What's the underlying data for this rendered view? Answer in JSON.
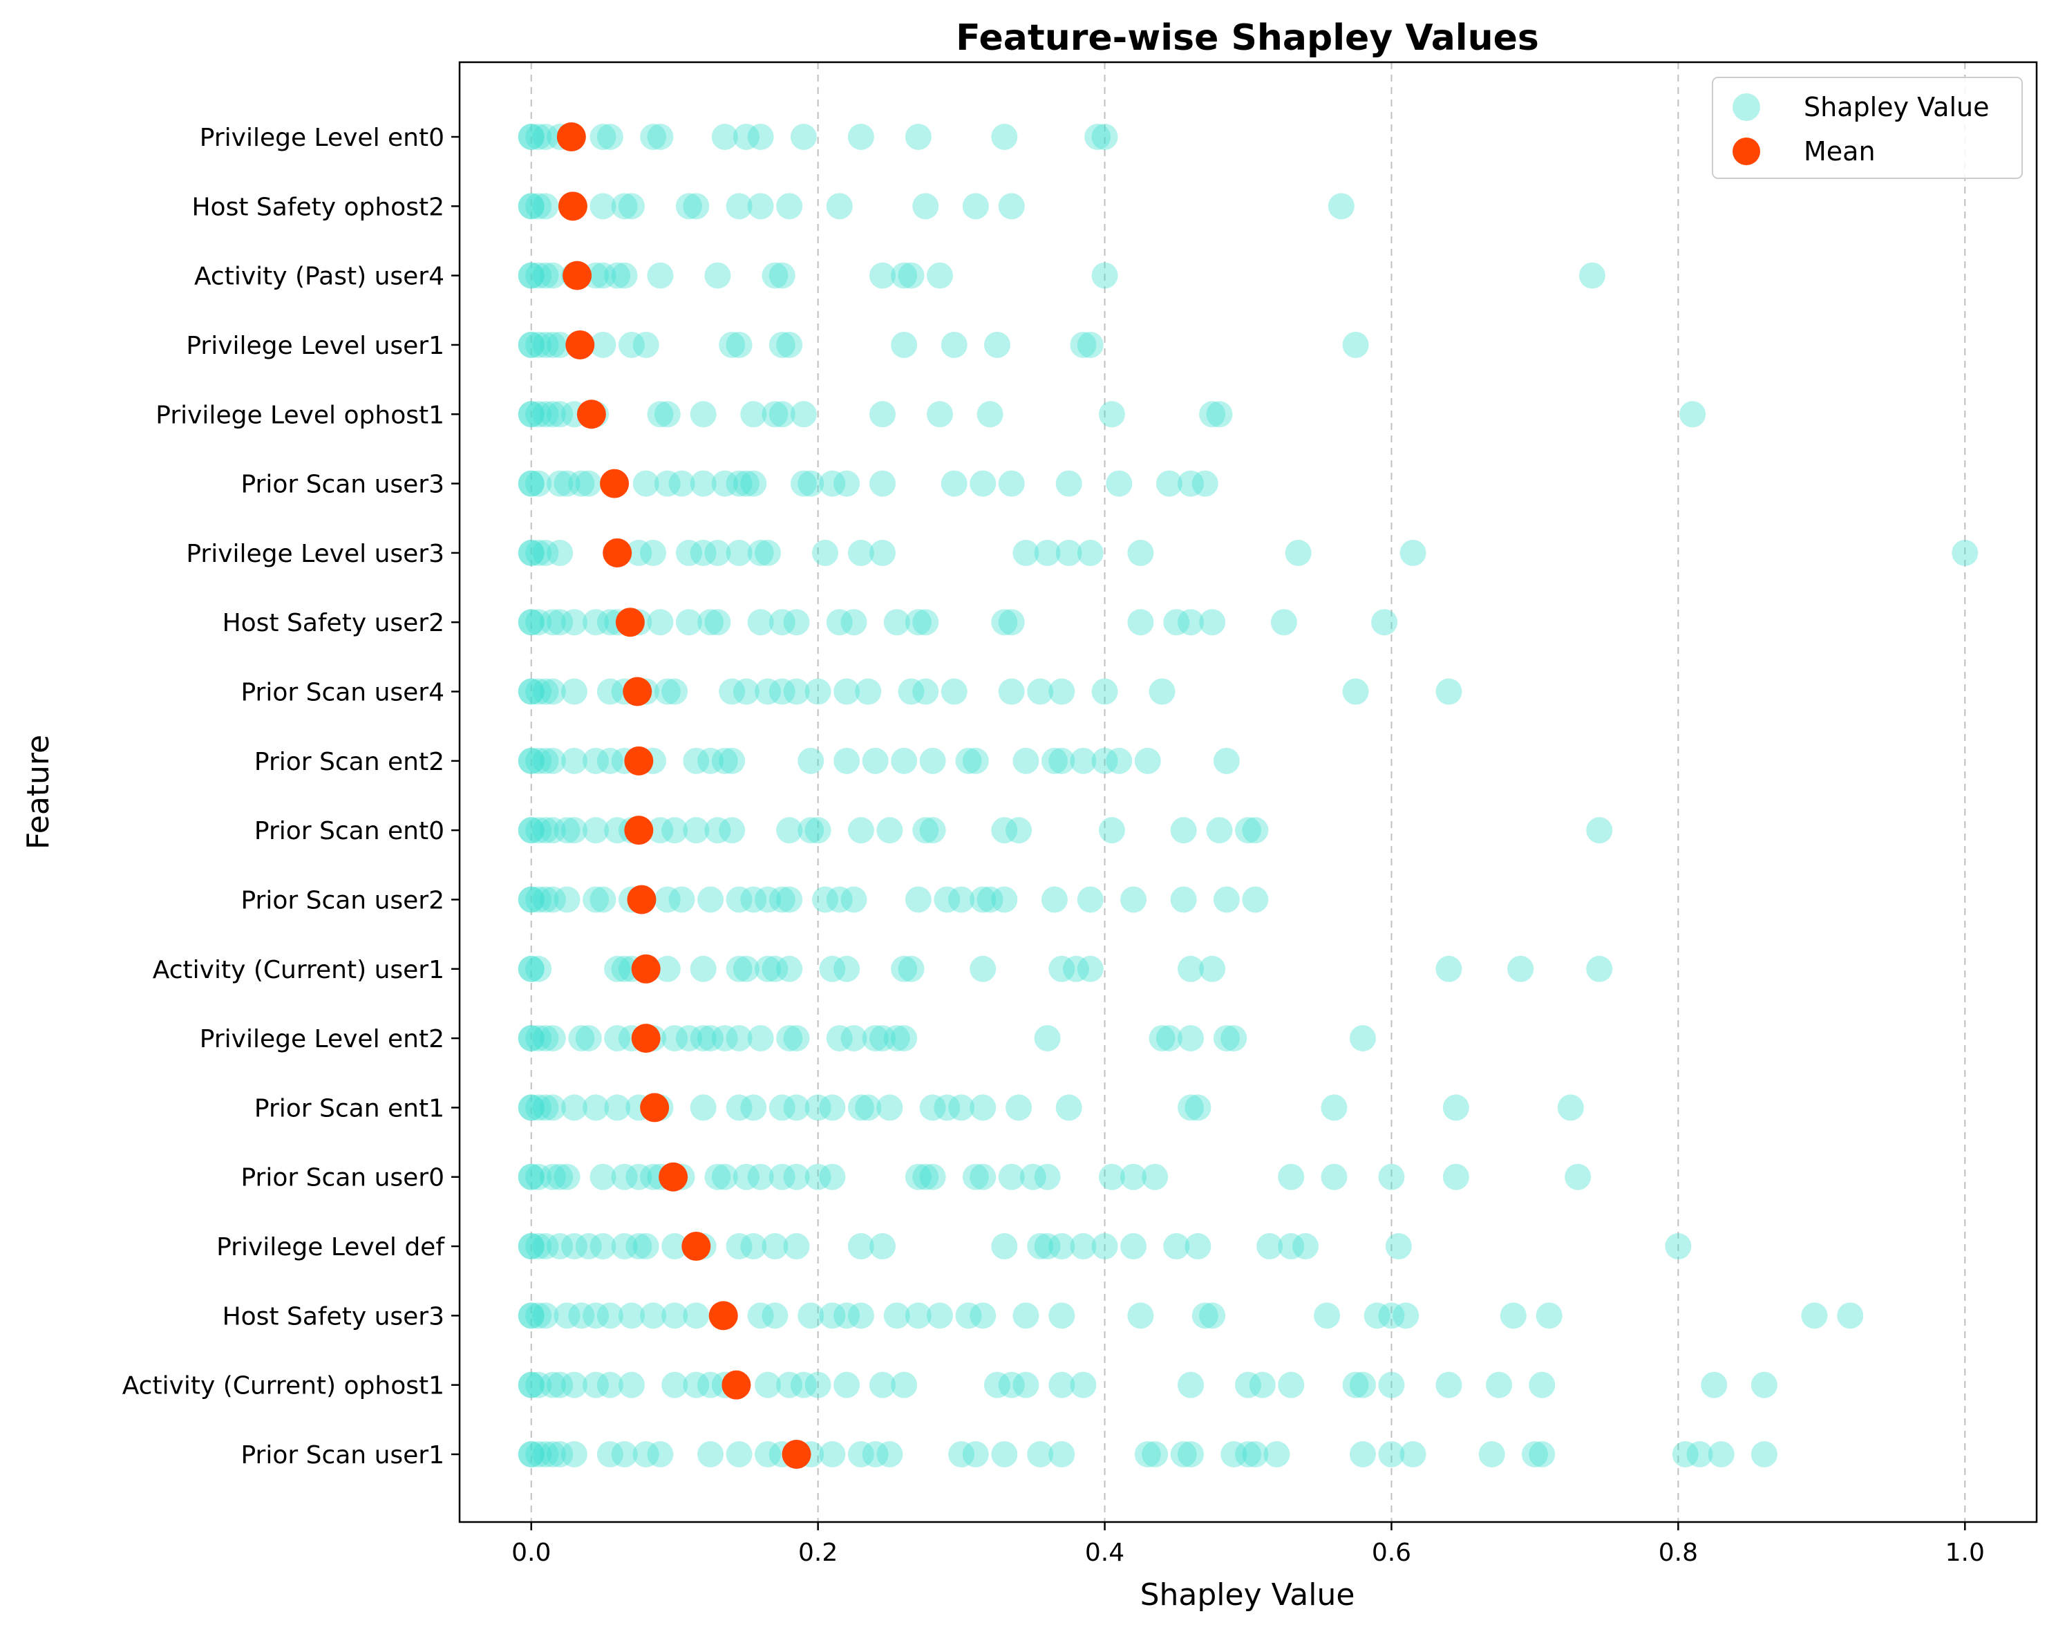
{
  "chart_data": {
    "type": "scatter",
    "title": "Feature-wise Shapley Values",
    "xlabel": "Shapley Value",
    "ylabel": "Feature",
    "xlim": [
      -0.05,
      1.05
    ],
    "xticks": [
      "0.0",
      "0.2",
      "0.4",
      "0.6",
      "0.8",
      "1.0"
    ],
    "xtick_values": [
      0.0,
      0.2,
      0.4,
      0.6,
      0.8,
      1.0
    ],
    "grid": "x-dashed",
    "legend_position": "top-right",
    "colors": {
      "points": "#40E0D0",
      "mean": "#FF4500"
    },
    "legend": [
      {
        "label": "Shapley Value",
        "kind": "points"
      },
      {
        "label": "Mean",
        "kind": "mean"
      }
    ],
    "features": [
      {
        "name": "Privilege Level ent0",
        "mean": 0.028,
        "values": [
          0,
          0,
          0.005,
          0.01,
          0.02,
          0.05,
          0.055,
          0.085,
          0.09,
          0.135,
          0.15,
          0.16,
          0.19,
          0.23,
          0.27,
          0.33,
          0.395,
          0.4
        ]
      },
      {
        "name": "Host Safety ophost2",
        "mean": 0.029,
        "values": [
          0,
          0,
          0.005,
          0.01,
          0.03,
          0.05,
          0.065,
          0.07,
          0.11,
          0.115,
          0.145,
          0.16,
          0.18,
          0.215,
          0.275,
          0.31,
          0.335,
          0.565
        ]
      },
      {
        "name": "Activity (Past) user4",
        "mean": 0.032,
        "values": [
          0,
          0,
          0.005,
          0.01,
          0.015,
          0.03,
          0.045,
          0.05,
          0.06,
          0.065,
          0.09,
          0.13,
          0.17,
          0.175,
          0.245,
          0.26,
          0.265,
          0.285,
          0.4,
          0.74
        ]
      },
      {
        "name": "Privilege Level user1",
        "mean": 0.034,
        "values": [
          0,
          0,
          0.005,
          0.01,
          0.015,
          0.02,
          0.05,
          0.07,
          0.08,
          0.14,
          0.145,
          0.175,
          0.18,
          0.26,
          0.295,
          0.325,
          0.385,
          0.39,
          0.575
        ]
      },
      {
        "name": "Privilege Level ophost1",
        "mean": 0.042,
        "values": [
          0,
          0,
          0.005,
          0.01,
          0.015,
          0.02,
          0.03,
          0.045,
          0.09,
          0.095,
          0.12,
          0.155,
          0.17,
          0.175,
          0.19,
          0.245,
          0.285,
          0.32,
          0.405,
          0.475,
          0.48,
          0.81
        ]
      },
      {
        "name": "Prior Scan user3",
        "mean": 0.058,
        "values": [
          0,
          0,
          0.005,
          0.02,
          0.025,
          0.035,
          0.04,
          0.08,
          0.095,
          0.105,
          0.12,
          0.135,
          0.145,
          0.15,
          0.155,
          0.19,
          0.195,
          0.21,
          0.22,
          0.245,
          0.295,
          0.315,
          0.335,
          0.375,
          0.41,
          0.445,
          0.46,
          0.47
        ]
      },
      {
        "name": "Privilege Level user3",
        "mean": 0.06,
        "values": [
          0,
          0,
          0.005,
          0.01,
          0.02,
          0.075,
          0.085,
          0.11,
          0.12,
          0.13,
          0.145,
          0.16,
          0.165,
          0.205,
          0.23,
          0.245,
          0.345,
          0.36,
          0.375,
          0.39,
          0.425,
          0.535,
          0.615,
          1.0
        ]
      },
      {
        "name": "Host Safety user2",
        "mean": 0.069,
        "values": [
          0,
          0,
          0.005,
          0.015,
          0.02,
          0.03,
          0.045,
          0.055,
          0.06,
          0.075,
          0.09,
          0.11,
          0.125,
          0.13,
          0.16,
          0.175,
          0.185,
          0.215,
          0.225,
          0.255,
          0.27,
          0.275,
          0.33,
          0.335,
          0.425,
          0.45,
          0.46,
          0.475,
          0.525,
          0.595
        ]
      },
      {
        "name": "Prior Scan user4",
        "mean": 0.074,
        "values": [
          0,
          0,
          0.005,
          0.01,
          0.015,
          0.03,
          0.055,
          0.065,
          0.08,
          0.095,
          0.1,
          0.14,
          0.15,
          0.165,
          0.175,
          0.185,
          0.2,
          0.22,
          0.235,
          0.265,
          0.275,
          0.295,
          0.335,
          0.355,
          0.37,
          0.4,
          0.44,
          0.575,
          0.64
        ]
      },
      {
        "name": "Prior Scan ent2",
        "mean": 0.075,
        "values": [
          0,
          0,
          0.005,
          0.01,
          0.015,
          0.03,
          0.045,
          0.055,
          0.065,
          0.085,
          0.115,
          0.125,
          0.135,
          0.14,
          0.195,
          0.22,
          0.24,
          0.26,
          0.28,
          0.305,
          0.31,
          0.345,
          0.365,
          0.37,
          0.385,
          0.4,
          0.41,
          0.43,
          0.485
        ]
      },
      {
        "name": "Prior Scan ent0",
        "mean": 0.075,
        "values": [
          0,
          0,
          0.005,
          0.01,
          0.015,
          0.025,
          0.03,
          0.045,
          0.06,
          0.07,
          0.09,
          0.1,
          0.115,
          0.13,
          0.14,
          0.18,
          0.195,
          0.2,
          0.23,
          0.25,
          0.275,
          0.28,
          0.33,
          0.34,
          0.405,
          0.455,
          0.48,
          0.5,
          0.505,
          0.745
        ]
      },
      {
        "name": "Prior Scan user2",
        "mean": 0.077,
        "values": [
          0,
          0,
          0.005,
          0.01,
          0.015,
          0.025,
          0.045,
          0.05,
          0.07,
          0.095,
          0.105,
          0.125,
          0.145,
          0.155,
          0.165,
          0.175,
          0.18,
          0.205,
          0.215,
          0.225,
          0.27,
          0.29,
          0.3,
          0.315,
          0.32,
          0.33,
          0.365,
          0.39,
          0.42,
          0.455,
          0.485,
          0.505
        ]
      },
      {
        "name": "Activity (Current) user1",
        "mean": 0.08,
        "values": [
          0,
          0,
          0.005,
          0.06,
          0.065,
          0.07,
          0.095,
          0.12,
          0.145,
          0.15,
          0.165,
          0.17,
          0.18,
          0.21,
          0.22,
          0.26,
          0.265,
          0.315,
          0.37,
          0.38,
          0.39,
          0.46,
          0.475,
          0.64,
          0.69,
          0.745
        ]
      },
      {
        "name": "Privilege Level ent2",
        "mean": 0.08,
        "values": [
          0,
          0,
          0.005,
          0.01,
          0.015,
          0.035,
          0.04,
          0.06,
          0.07,
          0.085,
          0.1,
          0.11,
          0.12,
          0.125,
          0.135,
          0.145,
          0.16,
          0.18,
          0.185,
          0.215,
          0.225,
          0.24,
          0.245,
          0.255,
          0.26,
          0.36,
          0.44,
          0.445,
          0.46,
          0.485,
          0.49,
          0.58
        ]
      },
      {
        "name": "Prior Scan ent1",
        "mean": 0.086,
        "values": [
          0,
          0,
          0.005,
          0.01,
          0.015,
          0.03,
          0.045,
          0.06,
          0.075,
          0.09,
          0.12,
          0.145,
          0.155,
          0.175,
          0.185,
          0.2,
          0.21,
          0.23,
          0.235,
          0.25,
          0.28,
          0.29,
          0.3,
          0.315,
          0.34,
          0.375,
          0.46,
          0.465,
          0.56,
          0.645,
          0.725
        ]
      },
      {
        "name": "Prior Scan user0",
        "mean": 0.099,
        "values": [
          0,
          0,
          0.005,
          0.015,
          0.02,
          0.025,
          0.05,
          0.065,
          0.075,
          0.085,
          0.09,
          0.105,
          0.13,
          0.135,
          0.15,
          0.16,
          0.175,
          0.185,
          0.2,
          0.21,
          0.27,
          0.275,
          0.28,
          0.31,
          0.315,
          0.335,
          0.35,
          0.36,
          0.405,
          0.42,
          0.435,
          0.53,
          0.56,
          0.6,
          0.645,
          0.73
        ]
      },
      {
        "name": "Privilege Level def",
        "mean": 0.115,
        "values": [
          0,
          0,
          0.005,
          0.01,
          0.02,
          0.03,
          0.04,
          0.05,
          0.065,
          0.075,
          0.08,
          0.1,
          0.12,
          0.145,
          0.155,
          0.17,
          0.185,
          0.23,
          0.245,
          0.33,
          0.355,
          0.36,
          0.37,
          0.385,
          0.4,
          0.42,
          0.45,
          0.465,
          0.515,
          0.53,
          0.54,
          0.605,
          0.8
        ]
      },
      {
        "name": "Host Safety user3",
        "mean": 0.134,
        "values": [
          0,
          0,
          0.005,
          0.01,
          0.025,
          0.035,
          0.045,
          0.055,
          0.07,
          0.085,
          0.1,
          0.115,
          0.16,
          0.17,
          0.195,
          0.21,
          0.22,
          0.23,
          0.255,
          0.27,
          0.285,
          0.305,
          0.315,
          0.345,
          0.37,
          0.425,
          0.47,
          0.475,
          0.555,
          0.59,
          0.6,
          0.61,
          0.685,
          0.71,
          0.895,
          0.92
        ]
      },
      {
        "name": "Activity (Current) ophost1",
        "mean": 0.143,
        "values": [
          0,
          0,
          0.005,
          0.015,
          0.02,
          0.03,
          0.045,
          0.055,
          0.07,
          0.1,
          0.115,
          0.125,
          0.135,
          0.165,
          0.18,
          0.19,
          0.2,
          0.22,
          0.245,
          0.26,
          0.325,
          0.335,
          0.345,
          0.37,
          0.385,
          0.46,
          0.5,
          0.51,
          0.53,
          0.575,
          0.58,
          0.6,
          0.64,
          0.675,
          0.705,
          0.825,
          0.86
        ]
      },
      {
        "name": "Prior Scan user1",
        "mean": 0.185,
        "values": [
          0,
          0,
          0.005,
          0.01,
          0.015,
          0.02,
          0.03,
          0.055,
          0.065,
          0.08,
          0.09,
          0.125,
          0.145,
          0.165,
          0.175,
          0.195,
          0.21,
          0.23,
          0.24,
          0.25,
          0.3,
          0.31,
          0.33,
          0.355,
          0.37,
          0.43,
          0.435,
          0.455,
          0.46,
          0.49,
          0.5,
          0.505,
          0.52,
          0.58,
          0.6,
          0.615,
          0.67,
          0.7,
          0.705,
          0.805,
          0.815,
          0.83,
          0.86
        ]
      }
    ]
  }
}
